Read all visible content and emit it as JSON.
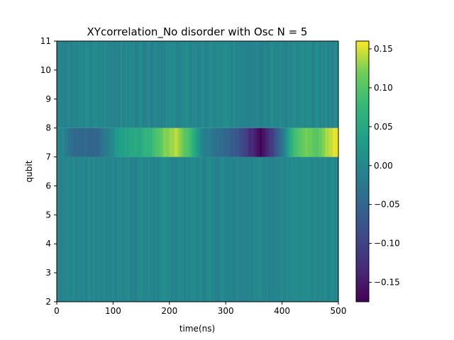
{
  "chart_data": {
    "type": "heatmap",
    "title": "XYcorrelation_No disorder with Osc N = 5",
    "xlabel": "time(ns)",
    "ylabel": "qubit",
    "xlim": [
      0,
      500
    ],
    "ylim": [
      2,
      11
    ],
    "x_ticks": [
      "0",
      "100",
      "200",
      "300",
      "400",
      "500"
    ],
    "y_ticks": [
      "2",
      "3",
      "4",
      "5",
      "6",
      "7",
      "8",
      "9",
      "10",
      "11"
    ],
    "colormap": "viridis",
    "colorbar": {
      "range": [
        -0.175,
        0.16
      ],
      "ticks": [
        "0.15",
        "0.10",
        "0.05",
        "0.00",
        "−0.05",
        "−0.10",
        "−0.15"
      ],
      "tick_values": [
        0.15,
        0.1,
        0.05,
        0.0,
        -0.05,
        -0.1,
        -0.15
      ]
    },
    "rows": [
      {
        "qubit_range": [
          2,
          7
        ],
        "pattern": "small noise around 0"
      },
      {
        "qubit_range": [
          7,
          8
        ],
        "time_ns": [
          10,
          30,
          70,
          90,
          110,
          140,
          170,
          190,
          210,
          230,
          260,
          290,
          320,
          340,
          360,
          380,
          400,
          420,
          440,
          460,
          480,
          500
        ],
        "values": [
          0.0,
          -0.05,
          -0.05,
          -0.01,
          0.04,
          0.05,
          0.08,
          0.12,
          0.14,
          0.1,
          -0.01,
          -0.04,
          -0.07,
          -0.12,
          -0.17,
          -0.11,
          -0.02,
          0.09,
          0.12,
          0.1,
          0.14,
          0.16
        ]
      },
      {
        "qubit_range": [
          8,
          11
        ],
        "pattern": "small noise around 0"
      }
    ]
  }
}
